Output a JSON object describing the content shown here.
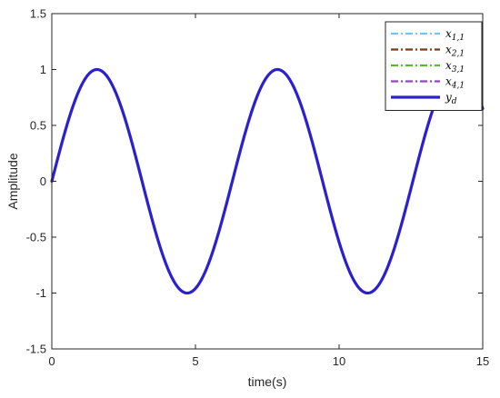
{
  "chart_data": {
    "type": "line",
    "title": "",
    "xlabel": "time(s)",
    "ylabel": "Amplitude",
    "xlim": [
      0,
      15
    ],
    "ylim": [
      -1.5,
      1.5
    ],
    "xticks": [
      0,
      5,
      10,
      15
    ],
    "xtick_labels": [
      "0",
      "5",
      "10",
      "15"
    ],
    "yticks": [
      -1.5,
      -1,
      -0.5,
      0,
      0.5,
      1,
      1.5
    ],
    "ytick_labels": [
      "-1.5",
      "-1",
      "-0.5",
      "0",
      "0.5",
      "1",
      "1.5"
    ],
    "grid": false,
    "legend_position": "top-right",
    "legend": [
      {
        "base": "x",
        "sub": "1,1",
        "color": "#6ec6f5",
        "style": "dashdot"
      },
      {
        "base": "x",
        "sub": "2,1",
        "color": "#7a3b0f",
        "style": "dashdot"
      },
      {
        "base": "x",
        "sub": "3,1",
        "color": "#5cb82e",
        "style": "dashdot"
      },
      {
        "base": "x",
        "sub": "4,1",
        "color": "#9b3fc9",
        "style": "dashdot"
      },
      {
        "base": "y",
        "sub": "d",
        "color": "#2a20cf",
        "style": "solid"
      }
    ],
    "series": [
      {
        "name": "y_d",
        "formula": "sin(t)",
        "color": "#2a20cf",
        "x": [
          0,
          0.5,
          1,
          1.5708,
          2,
          2.5,
          3,
          3.5,
          4,
          4.7124,
          5,
          5.5,
          6,
          6.5,
          7,
          7.854,
          8,
          8.5,
          9,
          9.5,
          10,
          10.9956,
          11.5,
          12,
          12.5,
          13,
          13.5,
          14,
          14.1372,
          14.5,
          15
        ],
        "y": [
          0,
          0.479,
          0.841,
          1,
          0.909,
          0.598,
          0.141,
          -0.351,
          -0.757,
          -1,
          -0.959,
          -0.706,
          -0.279,
          0.215,
          0.657,
          1,
          0.989,
          0.798,
          0.412,
          -0.075,
          -0.544,
          -1,
          -0.875,
          -0.537,
          -0.066,
          0.42,
          0.804,
          0.991,
          1,
          0.935,
          0.65
        ]
      }
    ]
  }
}
